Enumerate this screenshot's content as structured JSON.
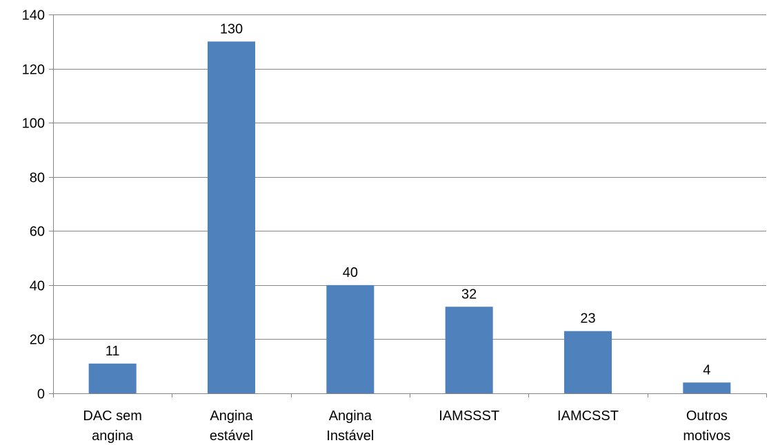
{
  "chart_data": {
    "type": "bar",
    "categories": [
      [
        "DAC sem",
        "angina"
      ],
      [
        "Angina",
        "estável"
      ],
      [
        "Angina",
        "Instável"
      ],
      [
        "IAMSSST"
      ],
      [
        "IAMCSST"
      ],
      [
        "Outros",
        "motivos"
      ]
    ],
    "values": [
      11,
      130,
      40,
      32,
      23,
      4
    ],
    "ylim": [
      0,
      140
    ],
    "yticks": [
      0,
      20,
      40,
      60,
      80,
      100,
      120,
      140
    ],
    "grid": true,
    "legend": "none",
    "title": "",
    "xlabel": "",
    "ylabel": "",
    "colors": {
      "bar": "#4f81bd",
      "grid": "#868686",
      "axis": "#868686"
    }
  }
}
